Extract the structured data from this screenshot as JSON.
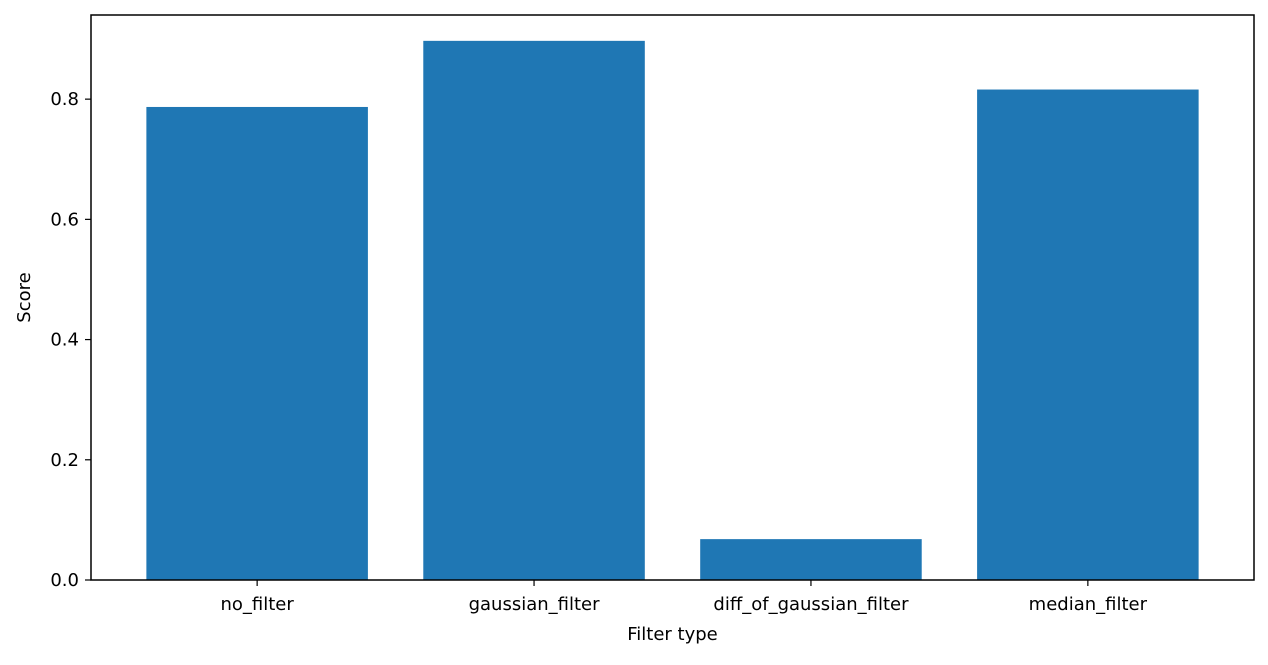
{
  "chart_data": {
    "type": "bar",
    "title": "",
    "xlabel": "Filter type",
    "ylabel": "Score",
    "categories": [
      "no_filter",
      "gaussian_filter",
      "diff_of_gaussian_filter",
      "median_filter"
    ],
    "values": [
      0.787,
      0.897,
      0.068,
      0.816
    ],
    "ylim": [
      0,
      0.94
    ],
    "yticks": [
      0.0,
      0.2,
      0.4,
      0.6,
      0.8
    ],
    "ytick_labels": [
      "0.0",
      "0.2",
      "0.4",
      "0.6",
      "0.8"
    ],
    "bar_color": "#1f77b4",
    "grid": false,
    "legend": "none"
  }
}
